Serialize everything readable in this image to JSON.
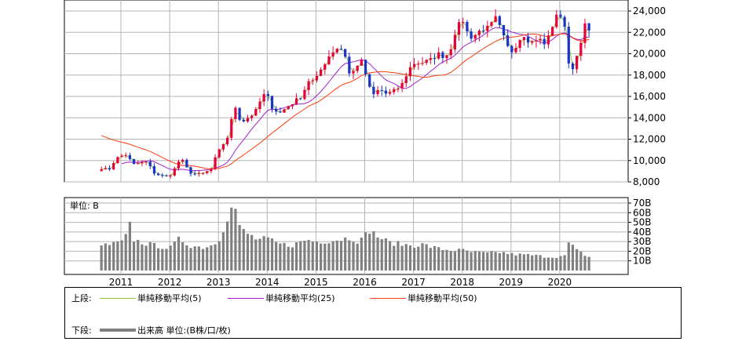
{
  "chart_data": [
    {
      "type": "candlestick",
      "title": "",
      "x_tick_labels": [
        "2011",
        "2012",
        "2013",
        "2014",
        "2015",
        "2016",
        "2017",
        "2018",
        "2019",
        "2020"
      ],
      "y_tick_labels": [
        "8,000",
        "10,000",
        "12,000",
        "14,000",
        "16,000",
        "18,000",
        "20,000",
        "22,000",
        "24,000"
      ],
      "ylim": [
        8000,
        25000
      ],
      "grid": true,
      "colors": {
        "up": "#e8003a",
        "down": "#1a34c8",
        "ma5": "#8cc63f",
        "ma25": "#a020d0",
        "ma50": "#ff3b10"
      },
      "series": [
        {
          "name": "単純移動平均(5)",
          "key": "ma5"
        },
        {
          "name": "単純移動平均(25)",
          "key": "ma25"
        },
        {
          "name": "単純移動平均(50)",
          "key": "ma50"
        }
      ],
      "anchors_close": [
        [
          2010.6,
          9300
        ],
        [
          2010.75,
          9100
        ],
        [
          2010.9,
          10200
        ],
        [
          2011.05,
          10500
        ],
        [
          2011.15,
          10600
        ],
        [
          2011.22,
          9500
        ],
        [
          2011.3,
          9700
        ],
        [
          2011.45,
          9800
        ],
        [
          2011.55,
          9900
        ],
        [
          2011.65,
          8900
        ],
        [
          2011.8,
          8600
        ],
        [
          2011.95,
          8500
        ],
        [
          2012.05,
          8800
        ],
        [
          2012.18,
          9900
        ],
        [
          2012.25,
          10100
        ],
        [
          2012.4,
          8900
        ],
        [
          2012.55,
          8700
        ],
        [
          2012.7,
          8800
        ],
        [
          2012.85,
          9200
        ],
        [
          2012.95,
          10400
        ],
        [
          2013.05,
          11200
        ],
        [
          2013.2,
          12300
        ],
        [
          2013.3,
          14500
        ],
        [
          2013.38,
          15300
        ],
        [
          2013.45,
          13500
        ],
        [
          2013.6,
          14000
        ],
        [
          2013.75,
          14500
        ],
        [
          2013.9,
          16000
        ],
        [
          2013.98,
          16300
        ],
        [
          2014.1,
          15000
        ],
        [
          2014.25,
          14400
        ],
        [
          2014.4,
          15000
        ],
        [
          2014.55,
          15500
        ],
        [
          2014.7,
          16000
        ],
        [
          2014.85,
          17500
        ],
        [
          2014.98,
          17400
        ],
        [
          2015.1,
          18500
        ],
        [
          2015.25,
          19700
        ],
        [
          2015.4,
          20500
        ],
        [
          2015.5,
          20600
        ],
        [
          2015.6,
          19800
        ],
        [
          2015.7,
          17800
        ],
        [
          2015.85,
          19000
        ],
        [
          2015.95,
          19300
        ],
        [
          2016.05,
          17500
        ],
        [
          2016.15,
          16000
        ],
        [
          2016.3,
          16700
        ],
        [
          2016.45,
          16200
        ],
        [
          2016.6,
          16500
        ],
        [
          2016.75,
          17000
        ],
        [
          2016.9,
          18500
        ],
        [
          2017.0,
          19100
        ],
        [
          2017.2,
          19200
        ],
        [
          2017.35,
          19400
        ],
        [
          2017.5,
          20000
        ],
        [
          2017.65,
          19700
        ],
        [
          2017.75,
          20300
        ],
        [
          2017.85,
          22000
        ],
        [
          2017.95,
          22800
        ],
        [
          2018.05,
          23300
        ],
        [
          2018.12,
          21500
        ],
        [
          2018.25,
          21700
        ],
        [
          2018.4,
          22300
        ],
        [
          2018.55,
          22400
        ],
        [
          2018.7,
          23400
        ],
        [
          2018.8,
          22000
        ],
        [
          2018.9,
          21000
        ],
        [
          2018.98,
          20000
        ],
        [
          2019.1,
          20800
        ],
        [
          2019.25,
          21900
        ],
        [
          2019.4,
          21000
        ],
        [
          2019.55,
          21500
        ],
        [
          2019.7,
          20800
        ],
        [
          2019.8,
          22000
        ],
        [
          2019.9,
          23300
        ],
        [
          2020.0,
          23700
        ],
        [
          2020.08,
          23200
        ],
        [
          2020.15,
          21100
        ],
        [
          2020.2,
          17800
        ],
        [
          2020.3,
          19200
        ],
        [
          2020.4,
          20400
        ],
        [
          2020.48,
          22500
        ],
        [
          2020.55,
          22700
        ],
        [
          2020.6,
          22100
        ]
      ]
    },
    {
      "type": "bar",
      "label": "単位: B",
      "ylim": [
        0,
        70
      ],
      "y_tick_labels": [
        "10B",
        "20B",
        "30B",
        "40B",
        "50B",
        "60B",
        "70B"
      ],
      "color": "#808080",
      "volume_anchors": [
        [
          2010.6,
          26
        ],
        [
          2010.8,
          27
        ],
        [
          2011.0,
          29
        ],
        [
          2011.1,
          35
        ],
        [
          2011.18,
          48
        ],
        [
          2011.25,
          32
        ],
        [
          2011.5,
          28
        ],
        [
          2011.8,
          25
        ],
        [
          2012.0,
          23
        ],
        [
          2012.2,
          33
        ],
        [
          2012.4,
          26
        ],
        [
          2012.7,
          24
        ],
        [
          2012.9,
          27
        ],
        [
          2013.05,
          35
        ],
        [
          2013.15,
          52
        ],
        [
          2013.25,
          62
        ],
        [
          2013.33,
          70
        ],
        [
          2013.42,
          45
        ],
        [
          2013.6,
          38
        ],
        [
          2013.8,
          32
        ],
        [
          2014.0,
          33
        ],
        [
          2014.2,
          28
        ],
        [
          2014.5,
          26
        ],
        [
          2014.8,
          32
        ],
        [
          2015.0,
          30
        ],
        [
          2015.3,
          31
        ],
        [
          2015.55,
          33
        ],
        [
          2015.7,
          34
        ],
        [
          2015.9,
          30
        ],
        [
          2016.1,
          42
        ],
        [
          2016.25,
          36
        ],
        [
          2016.5,
          29
        ],
        [
          2016.8,
          27
        ],
        [
          2017.0,
          26
        ],
        [
          2017.2,
          27
        ],
        [
          2017.4,
          24
        ],
        [
          2017.6,
          22
        ],
        [
          2017.8,
          21
        ],
        [
          2018.0,
          21
        ],
        [
          2018.2,
          19
        ],
        [
          2018.5,
          18
        ],
        [
          2018.8,
          19
        ],
        [
          2019.0,
          17
        ],
        [
          2019.4,
          16
        ],
        [
          2019.8,
          14
        ],
        [
          2020.1,
          15
        ],
        [
          2020.2,
          31
        ],
        [
          2020.3,
          22
        ],
        [
          2020.45,
          18
        ],
        [
          2020.6,
          14
        ]
      ]
    }
  ],
  "legend": {
    "upper_label": "上段:",
    "lower_label": "下段:",
    "ma5_label": "単純移動平均(5)",
    "ma25_label": "単純移動平均(25)",
    "ma50_label": "単純移動平均(50)",
    "volume_label": "出来高 単位:(B株/口/枚)"
  }
}
